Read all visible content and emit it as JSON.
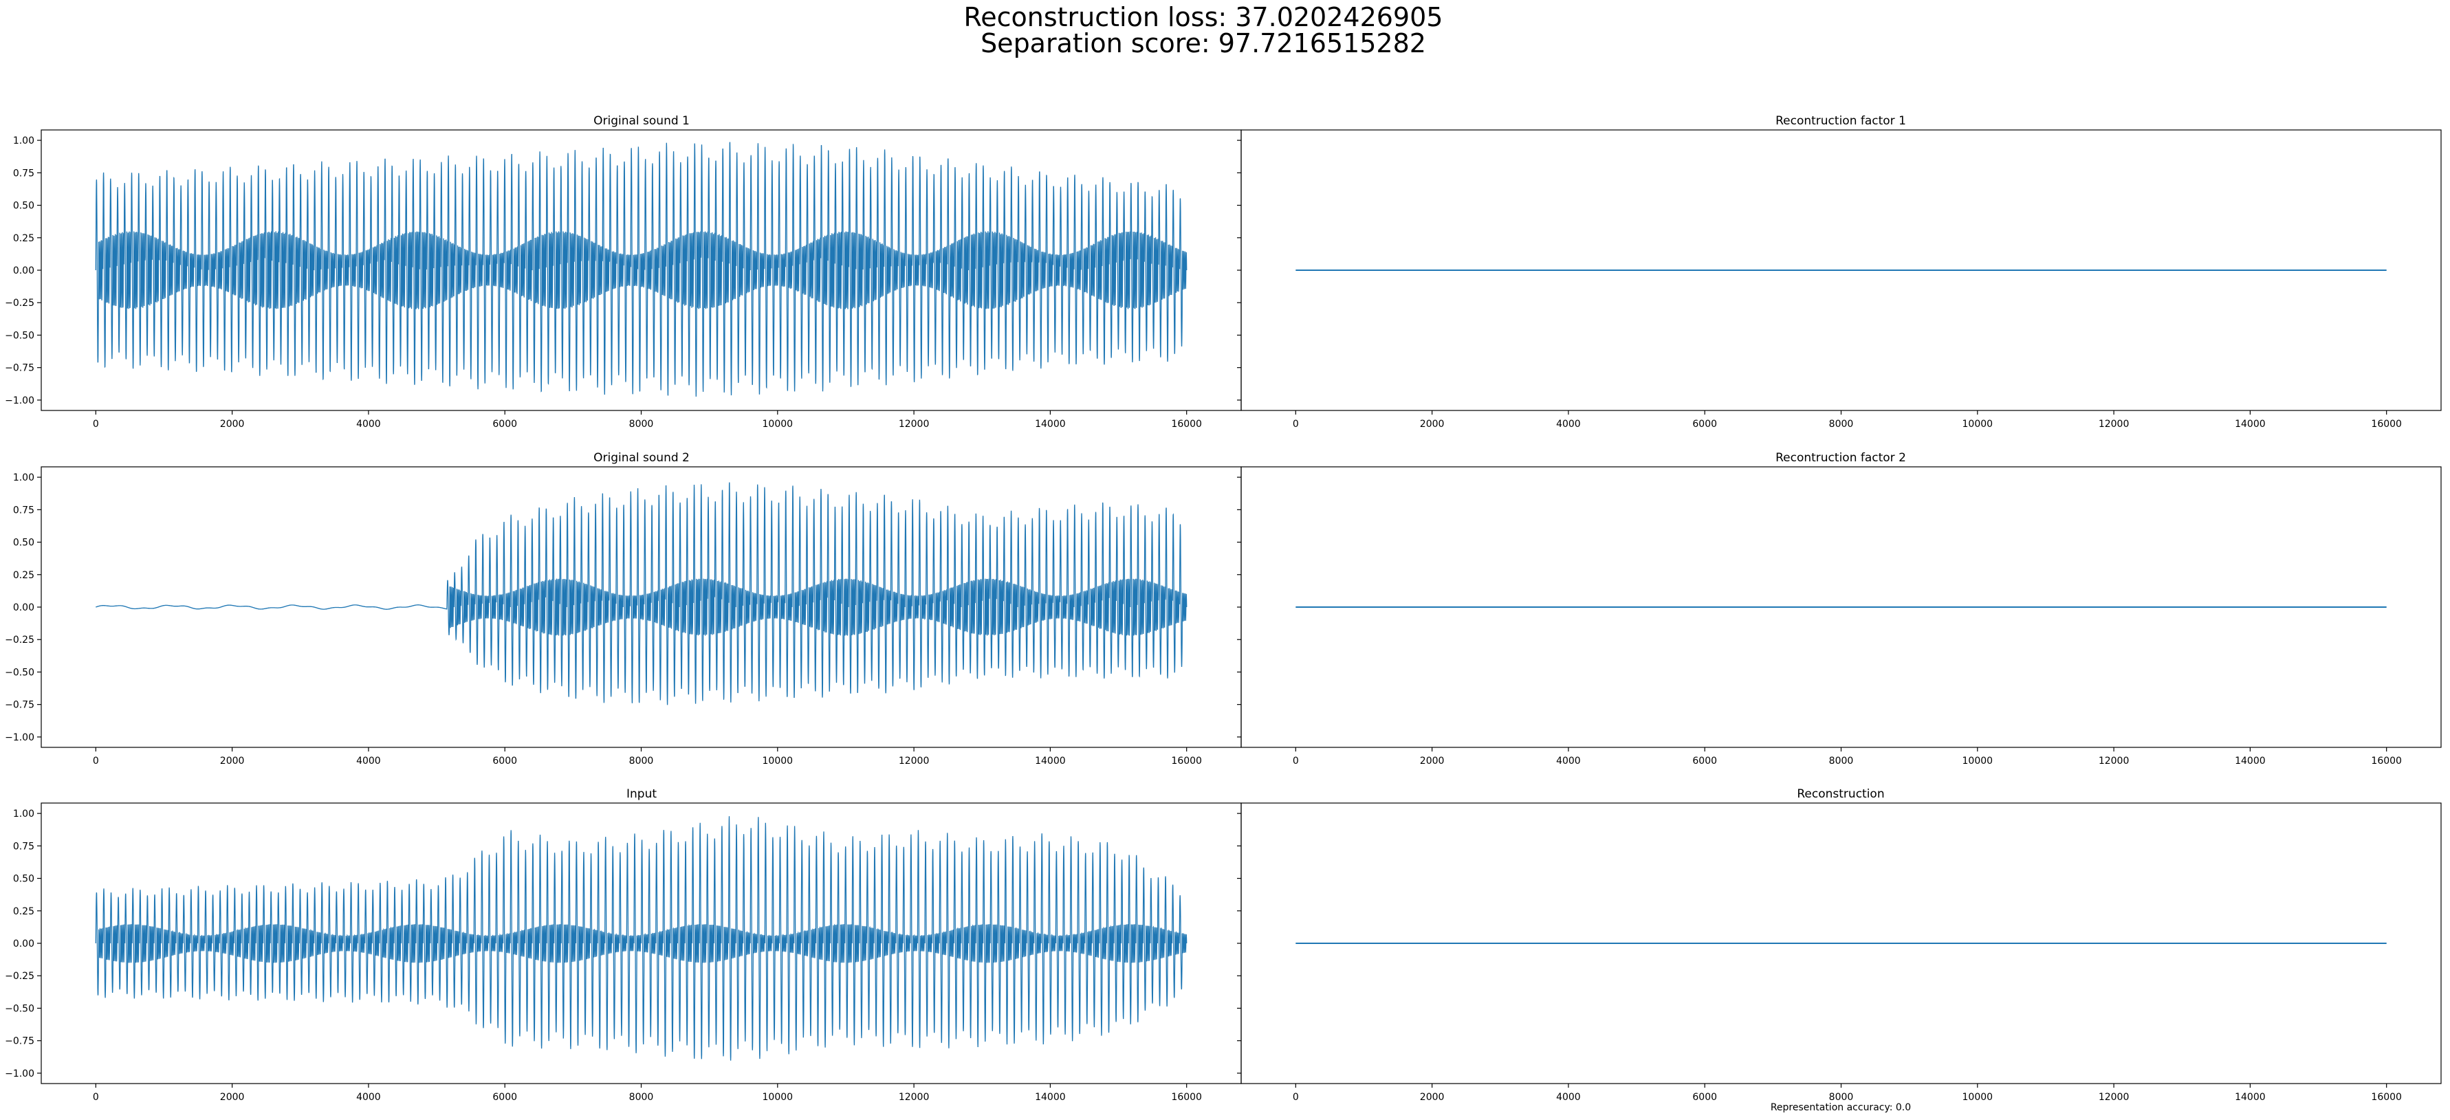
{
  "figure": {
    "suptitle_line1": "Reconstruction loss: 37.0202426905",
    "suptitle_line2": "Separation score: 97.7216515282",
    "footer": "Representation accuracy: 0.0",
    "line_color": "#1f77b4"
  },
  "chart_data": [
    {
      "type": "line",
      "title": "Original sound 1",
      "x_range": [
        0,
        16000
      ],
      "xlim": [
        -800,
        16800
      ],
      "ylim": [
        -1.08,
        1.08
      ],
      "xticks": [
        0,
        2000,
        4000,
        6000,
        8000,
        10000,
        12000,
        14000,
        16000
      ],
      "yticks": [
        1.0,
        0.75,
        0.5,
        0.25,
        0.0,
        -0.25,
        -0.5,
        -0.75,
        -1.0
      ],
      "ytick_labels": [
        "1.00",
        "0.75",
        "0.50",
        "0.25",
        "0.00",
        "−0.25",
        "−0.50",
        "−0.75",
        "−1.00"
      ],
      "show_y_ticklabels": true,
      "series": [
        {
          "signal": "waveform",
          "onset": 0,
          "pre_onset_amplitude": 0,
          "envelope_x": [
            0,
            2000,
            4000,
            6000,
            8000,
            9000,
            10000,
            11000,
            12000,
            14000,
            16000
          ],
          "envelope_upper": [
            0.75,
            0.8,
            0.86,
            0.9,
            0.97,
            1.0,
            0.98,
            0.97,
            0.9,
            0.76,
            0.65
          ],
          "envelope_lower": [
            -0.75,
            -0.8,
            -0.87,
            -0.93,
            -0.97,
            -0.98,
            -0.96,
            -0.92,
            -0.87,
            -0.75,
            -0.7
          ],
          "inner_band": 0.3,
          "cycles": 155
        }
      ]
    },
    {
      "type": "line",
      "title": "Recontruction factor 1",
      "x_range": [
        0,
        16000
      ],
      "xlim": [
        -800,
        16800
      ],
      "ylim": [
        -1.08,
        1.08
      ],
      "xticks": [
        0,
        2000,
        4000,
        6000,
        8000,
        10000,
        12000,
        14000,
        16000
      ],
      "yticks": [
        1.0,
        0.75,
        0.5,
        0.25,
        0.0,
        -0.25,
        -0.5,
        -0.75,
        -1.0
      ],
      "show_y_ticklabels": false,
      "series": [
        {
          "signal": "constant",
          "value": 0.0
        }
      ]
    },
    {
      "type": "line",
      "title": "Original sound 2",
      "x_range": [
        0,
        16000
      ],
      "xlim": [
        -800,
        16800
      ],
      "ylim": [
        -1.08,
        1.08
      ],
      "xticks": [
        0,
        2000,
        4000,
        6000,
        8000,
        10000,
        12000,
        14000,
        16000
      ],
      "yticks": [
        1.0,
        0.75,
        0.5,
        0.25,
        0.0,
        -0.25,
        -0.5,
        -0.75,
        -1.0
      ],
      "ytick_labels": [
        "1.00",
        "0.75",
        "0.50",
        "0.25",
        "0.00",
        "−0.25",
        "−0.50",
        "−0.75",
        "−1.00"
      ],
      "show_y_ticklabels": true,
      "series": [
        {
          "signal": "waveform",
          "onset": 5150,
          "pre_onset_amplitude": 0.012,
          "envelope_x": [
            5150,
            5600,
            6000,
            7000,
            8000,
            9000,
            10000,
            12000,
            13000,
            14000,
            15000,
            16000
          ],
          "envelope_upper": [
            0.2,
            0.55,
            0.7,
            0.85,
            0.93,
            0.97,
            0.95,
            0.85,
            0.72,
            0.78,
            0.82,
            0.75
          ],
          "envelope_lower": [
            -0.2,
            -0.45,
            -0.6,
            -0.72,
            -0.76,
            -0.75,
            -0.72,
            -0.65,
            -0.55,
            -0.55,
            -0.55,
            -0.55
          ],
          "inner_band": 0.22,
          "cycles": 105
        }
      ]
    },
    {
      "type": "line",
      "title": "Recontruction factor 2",
      "x_range": [
        0,
        16000
      ],
      "xlim": [
        -800,
        16800
      ],
      "ylim": [
        -1.08,
        1.08
      ],
      "xticks": [
        0,
        2000,
        4000,
        6000,
        8000,
        10000,
        12000,
        14000,
        16000
      ],
      "yticks": [
        1.0,
        0.75,
        0.5,
        0.25,
        0.0,
        -0.25,
        -0.5,
        -0.75,
        -1.0
      ],
      "show_y_ticklabels": false,
      "series": [
        {
          "signal": "constant",
          "value": 0.0
        }
      ]
    },
    {
      "type": "line",
      "title": "Input",
      "x_range": [
        0,
        16000
      ],
      "xlim": [
        -800,
        16800
      ],
      "ylim": [
        -1.08,
        1.08
      ],
      "xticks": [
        0,
        2000,
        4000,
        6000,
        8000,
        10000,
        12000,
        14000,
        16000
      ],
      "yticks": [
        1.0,
        0.75,
        0.5,
        0.25,
        0.0,
        -0.25,
        -0.5,
        -0.75,
        -1.0
      ],
      "ytick_labels": [
        "1.00",
        "0.75",
        "0.50",
        "0.25",
        "0.00",
        "−0.25",
        "−0.50",
        "−0.75",
        "−1.00"
      ],
      "show_y_ticklabels": true,
      "series": [
        {
          "signal": "waveform",
          "onset": 0,
          "pre_onset_amplitude": 0,
          "envelope_x": [
            0,
            2000,
            4000,
            5100,
            5500,
            6000,
            7000,
            8000,
            9000,
            9500,
            10000,
            11000,
            12000,
            13000,
            14000,
            15000,
            16000
          ],
          "envelope_upper": [
            0.42,
            0.45,
            0.48,
            0.5,
            0.65,
            0.88,
            0.8,
            0.85,
            0.95,
            1.0,
            0.95,
            0.82,
            0.88,
            0.82,
            0.85,
            0.78,
            0.4
          ],
          "envelope_lower": [
            -0.42,
            -0.44,
            -0.46,
            -0.48,
            -0.6,
            -0.8,
            -0.82,
            -0.85,
            -0.92,
            -0.9,
            -0.88,
            -0.78,
            -0.82,
            -0.8,
            -0.78,
            -0.7,
            -0.4
          ],
          "inner_band": 0.15,
          "cycles": 150
        }
      ]
    },
    {
      "type": "line",
      "title": "Reconstruction",
      "x_range": [
        0,
        16000
      ],
      "xlim": [
        -800,
        16800
      ],
      "ylim": [
        -1.08,
        1.08
      ],
      "xticks": [
        0,
        2000,
        4000,
        6000,
        8000,
        10000,
        12000,
        14000,
        16000
      ],
      "yticks": [
        1.0,
        0.75,
        0.5,
        0.25,
        0.0,
        -0.25,
        -0.5,
        -0.75,
        -1.0
      ],
      "show_y_ticklabels": false,
      "series": [
        {
          "signal": "constant",
          "value": 0.0
        }
      ]
    }
  ]
}
